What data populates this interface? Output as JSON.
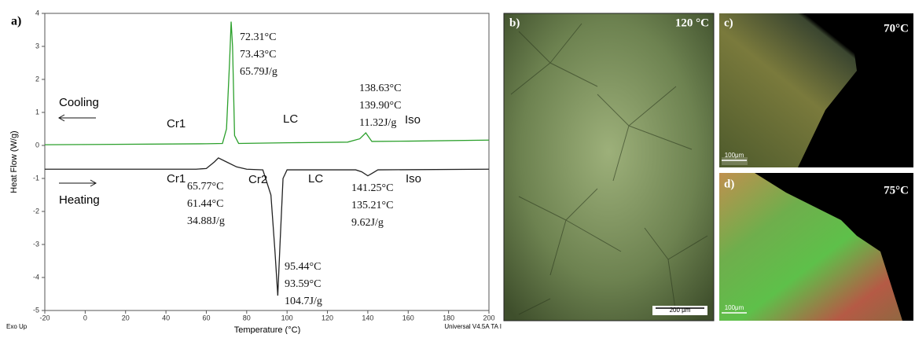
{
  "chart_data": {
    "type": "line",
    "panel_label": "a)",
    "xlabel": "Temperature (°C)",
    "ylabel": "Heat Flow (W/g)",
    "corner_left": "Exo Up",
    "corner_right": "Universal V4.5A TA I",
    "xlim": [
      -20,
      200
    ],
    "ylim": [
      -5,
      4
    ],
    "xticks": [
      -20,
      0,
      20,
      40,
      60,
      80,
      100,
      120,
      140,
      160,
      180,
      200
    ],
    "yticks": [
      -5,
      -4,
      -3,
      -2,
      -1,
      0,
      1,
      2,
      3,
      4
    ],
    "grid": false,
    "series": [
      {
        "name": "Cooling",
        "color": "#2ca02c",
        "x": [
          -20,
          60,
          68,
          70,
          71.5,
          72.3,
          73,
          74,
          76,
          100,
          130,
          136,
          139,
          140.5,
          142,
          160,
          200
        ],
        "values": [
          0.02,
          0.05,
          0.06,
          0.5,
          2.5,
          3.75,
          3.0,
          0.3,
          0.06,
          0.08,
          0.1,
          0.2,
          0.38,
          0.25,
          0.12,
          0.13,
          0.16
        ]
      },
      {
        "name": "Heating",
        "color": "#222222",
        "x": [
          -20,
          55,
          60,
          64,
          66,
          70,
          75,
          80,
          88,
          92,
          94,
          95.4,
          96.5,
          98,
          100,
          130,
          134,
          137,
          140,
          142,
          145,
          200
        ],
        "values": [
          -0.72,
          -0.72,
          -0.7,
          -0.5,
          -0.38,
          -0.5,
          -0.65,
          -0.72,
          -0.74,
          -1.5,
          -3.2,
          -4.55,
          -3.0,
          -1.0,
          -0.74,
          -0.74,
          -0.74,
          -0.8,
          -0.92,
          -0.85,
          -0.74,
          -0.72
        ]
      }
    ],
    "annotations": [
      {
        "lines": [
          "72.31°C",
          "73.43°C",
          "65.79J/g"
        ]
      },
      {
        "lines": [
          "138.63°C",
          "139.90°C",
          "11.32J/g"
        ]
      },
      {
        "lines": [
          "65.77°C",
          "61.44°C",
          "34.88J/g"
        ]
      },
      {
        "lines": [
          "141.25°C",
          "135.21°C",
          "9.62J/g"
        ]
      },
      {
        "lines": [
          "95.44°C",
          "93.59°C",
          "104.7J/g"
        ]
      }
    ],
    "phase_labels": [
      "Cr1",
      "LC",
      "Iso",
      "Cr1",
      "Cr2",
      "LC",
      "Iso"
    ]
  },
  "images": [
    {
      "label": "b)",
      "temperature": "120 °C",
      "scale_bar": "200 μm"
    },
    {
      "label": "c)",
      "temperature": "70°C",
      "scale_bar": "100μm"
    },
    {
      "label": "d)",
      "temperature": "75°C",
      "scale_bar": "100μm"
    }
  ]
}
